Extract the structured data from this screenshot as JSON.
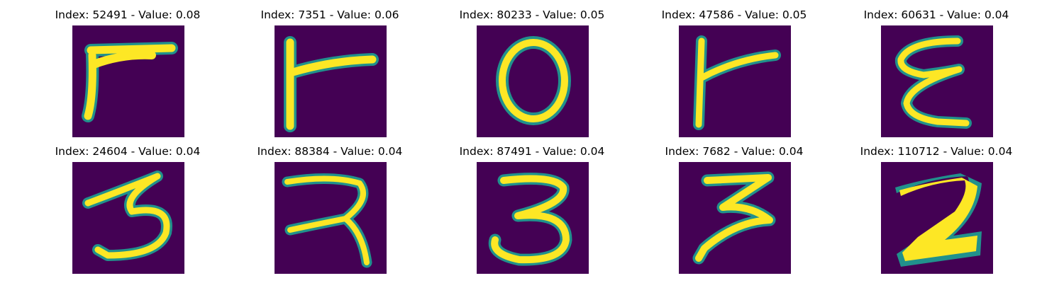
{
  "figure": {
    "panels": [
      {
        "title": "Index: 52491 - Value: 0.08",
        "glyph": "handwritten-r"
      },
      {
        "title": "Index: 7351 - Value: 0.06",
        "glyph": "handwritten-r"
      },
      {
        "title": "Index: 80233 - Value: 0.05",
        "glyph": "handwritten-0"
      },
      {
        "title": "Index: 47586 - Value: 0.05",
        "glyph": "handwritten-r"
      },
      {
        "title": "Index: 60631 - Value: 0.04",
        "glyph": "handwritten-E"
      },
      {
        "title": "Index: 24604 - Value: 0.04",
        "glyph": "handwritten-3"
      },
      {
        "title": "Index: 88384 - Value: 0.04",
        "glyph": "handwritten-3"
      },
      {
        "title": "Index: 87491 - Value: 0.04",
        "glyph": "handwritten-3"
      },
      {
        "title": "Index: 7682 - Value: 0.04",
        "glyph": "handwritten-3"
      },
      {
        "title": "Index: 110712 - Value: 0.04",
        "glyph": "handwritten-2"
      }
    ],
    "colors": {
      "background": "#440154",
      "stroke_core": "#fde725",
      "stroke_edge": "#21918c"
    }
  }
}
